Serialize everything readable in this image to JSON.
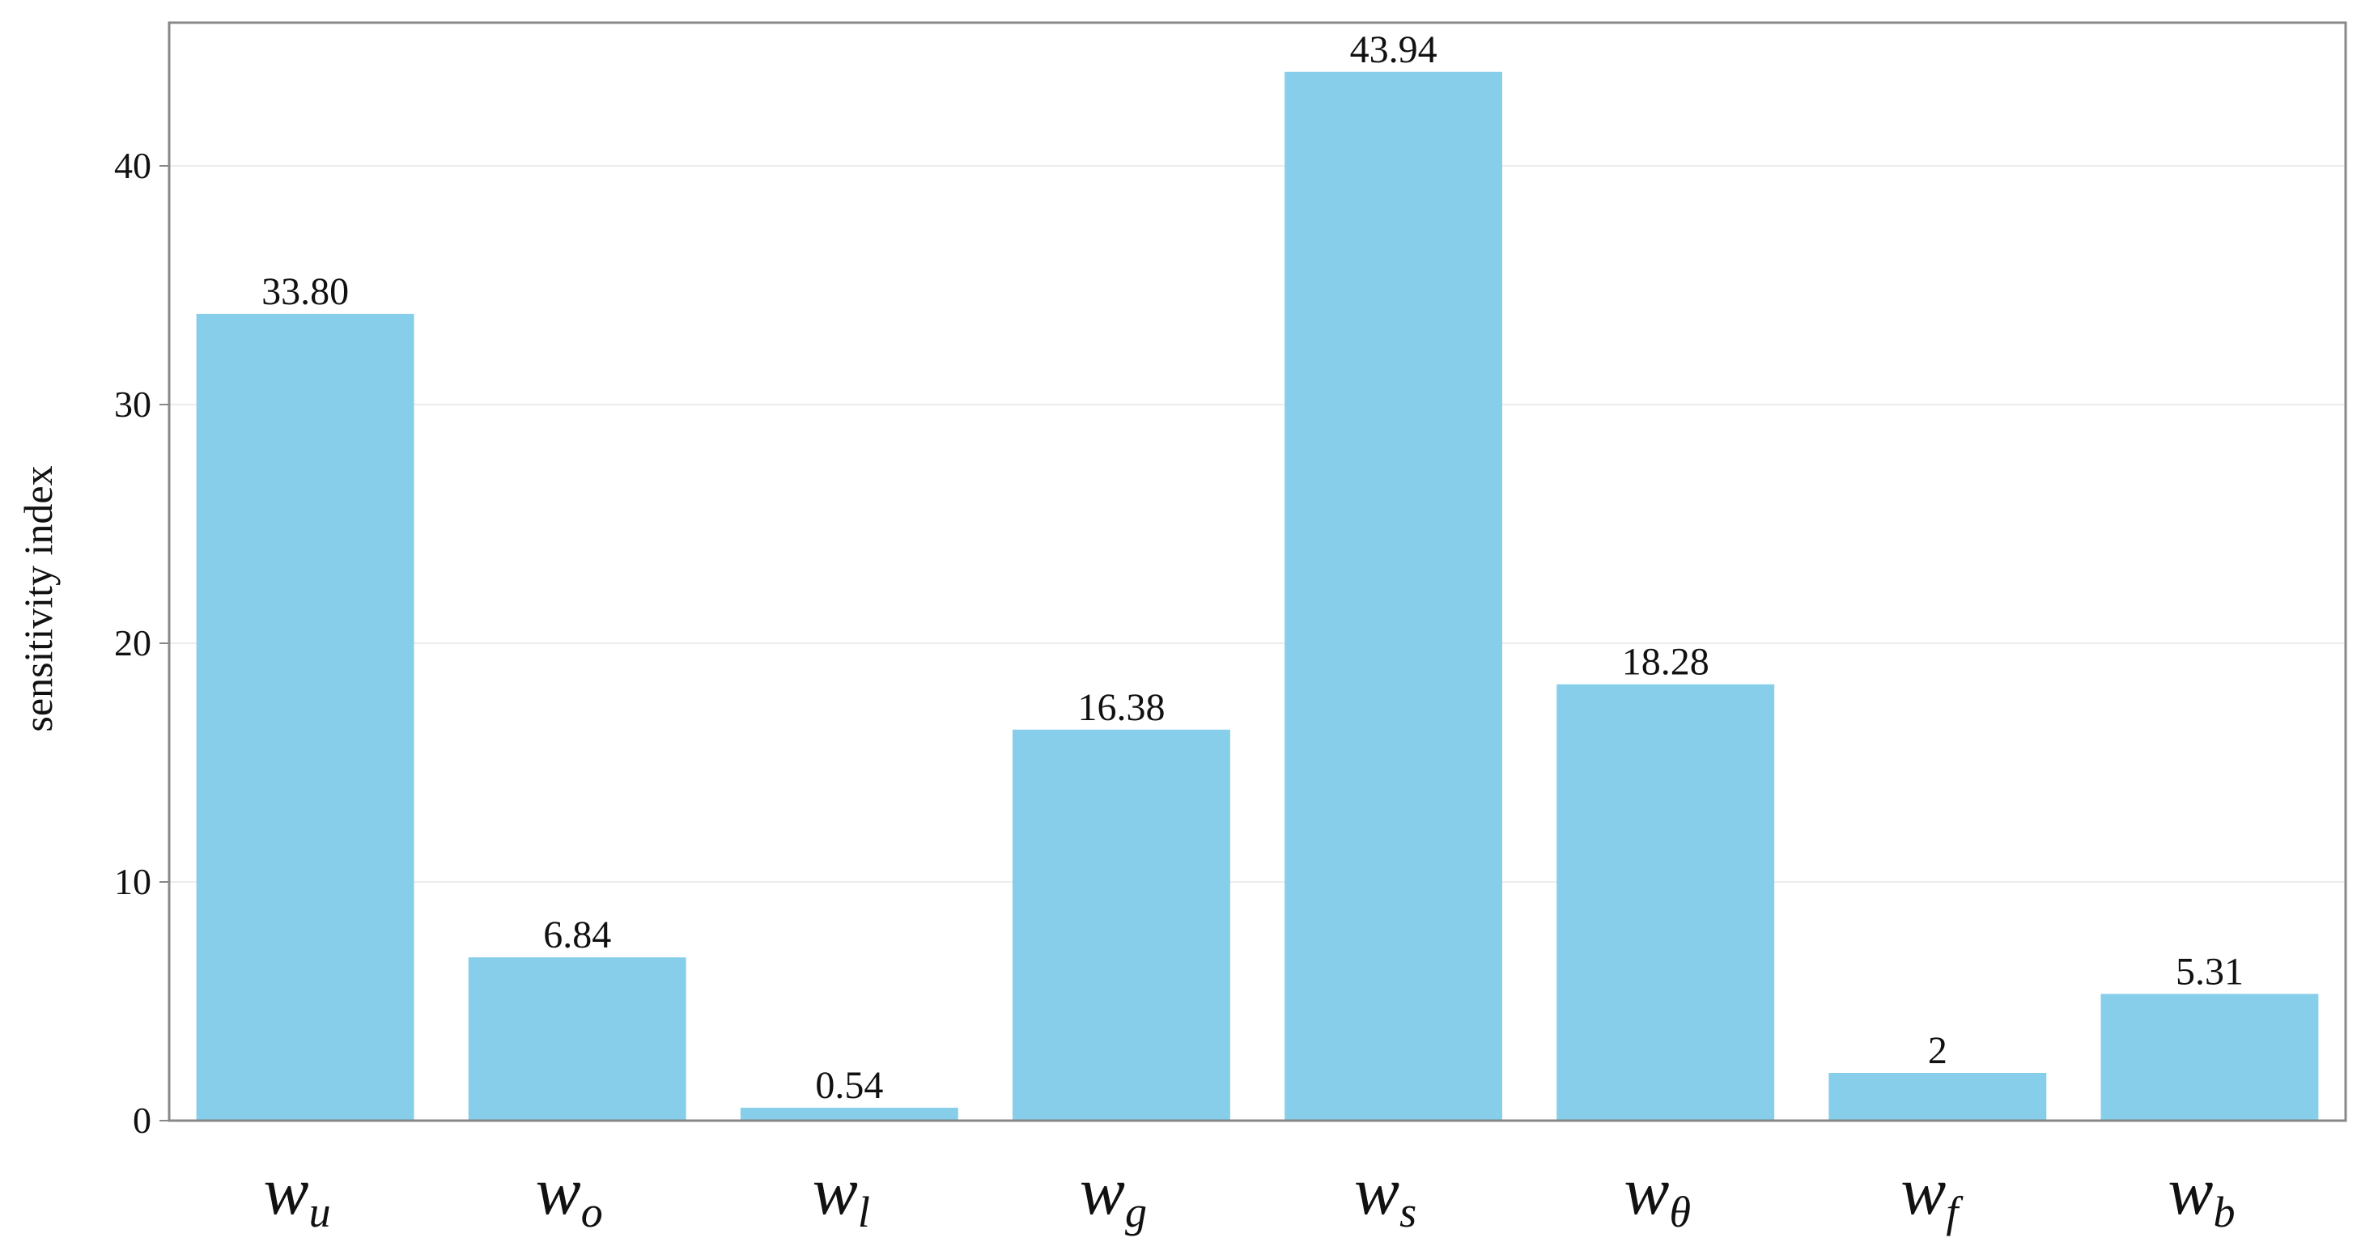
{
  "chart_data": {
    "type": "bar",
    "categories": [
      {
        "base": "w",
        "sub": "u"
      },
      {
        "base": "w",
        "sub": "o"
      },
      {
        "base": "w",
        "sub": "l"
      },
      {
        "base": "w",
        "sub": "g"
      },
      {
        "base": "w",
        "sub": "s"
      },
      {
        "base": "w",
        "sub": "θ"
      },
      {
        "base": "w",
        "sub": "f"
      },
      {
        "base": "w",
        "sub": "b"
      }
    ],
    "values": [
      33.8,
      6.84,
      0.54,
      16.38,
      43.94,
      18.28,
      2,
      5.31
    ],
    "data_labels": [
      "33.80",
      "6.84",
      "0.54",
      "16.38",
      "43.94",
      "18.28",
      "2",
      "5.31"
    ],
    "title": "",
    "xlabel": "",
    "ylabel": "sensitivity  index",
    "ylim": [
      0,
      46
    ],
    "yticks": [
      0,
      10,
      20,
      30,
      40
    ],
    "grid": true,
    "bar_color": "#87ceeb",
    "frame_color": "#888888",
    "grid_color": "#ececec"
  }
}
